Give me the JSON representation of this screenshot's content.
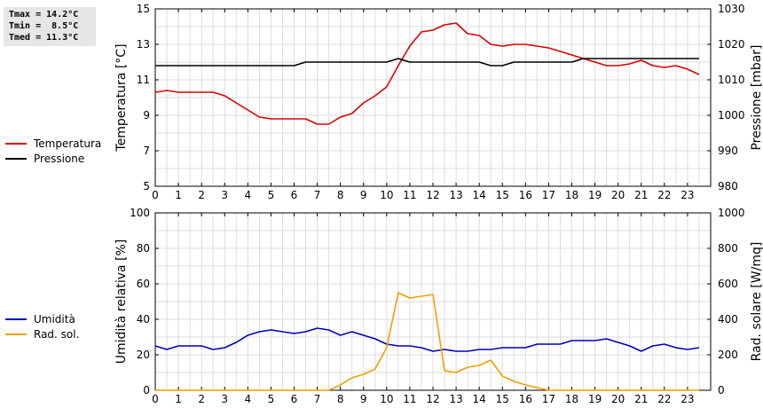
{
  "stats": {
    "tmax": "Tmax = 14.2°C",
    "tmin": "Tmin =  8.5°C",
    "tmed": "Tmed = 11.3°C"
  },
  "legend_top": [
    {
      "label": "Temperatura",
      "color": "#dd0000"
    },
    {
      "label": "Pressione",
      "color": "#000000"
    }
  ],
  "legend_bottom": [
    {
      "label": "Umidità",
      "color": "#0000bb"
    },
    {
      "label": "Rad. sol.",
      "color": "#f0a000"
    }
  ],
  "chart_data": [
    {
      "type": "line",
      "xlim": [
        0,
        24
      ],
      "xticks": [
        "0",
        "1",
        "2",
        "3",
        "4",
        "5",
        "6",
        "7",
        "8",
        "9",
        "10",
        "11",
        "12",
        "13",
        "14",
        "15",
        "16",
        "17",
        "18",
        "19",
        "20",
        "21",
        "22",
        "23"
      ],
      "ylabel_left": "Temperatura [°C]",
      "ylabel_right": "Pressione [mbar]",
      "ylim_left": [
        5,
        15
      ],
      "yticks_left": [
        "5",
        "7",
        "9",
        "11",
        "13",
        "15"
      ],
      "ylim_right": [
        980,
        1030
      ],
      "yticks_right": [
        "980",
        "990",
        "1000",
        "1010",
        "1020",
        "1030"
      ],
      "grid": true,
      "series": [
        {
          "name": "Temperatura",
          "axis": "left",
          "color": "#dd0000",
          "x": [
            0,
            0.5,
            1,
            1.5,
            2,
            2.5,
            3,
            3.5,
            4,
            4.5,
            5,
            5.5,
            6,
            6.5,
            7,
            7.5,
            8,
            8.5,
            9,
            9.5,
            10,
            10.5,
            11,
            11.5,
            12,
            12.5,
            13,
            13.5,
            14,
            14.5,
            15,
            15.5,
            16,
            16.5,
            17,
            17.5,
            18,
            18.5,
            19,
            19.5,
            20,
            20.5,
            21,
            21.5,
            22,
            22.5,
            23,
            23.5
          ],
          "values": [
            10.3,
            10.4,
            10.3,
            10.3,
            10.3,
            10.3,
            10.1,
            9.7,
            9.3,
            8.9,
            8.8,
            8.8,
            8.8,
            8.8,
            8.5,
            8.5,
            8.9,
            9.1,
            9.7,
            10.1,
            10.6,
            11.8,
            12.9,
            13.7,
            13.8,
            14.1,
            14.2,
            13.6,
            13.5,
            13.0,
            12.9,
            13.0,
            13.0,
            12.9,
            12.8,
            12.6,
            12.4,
            12.2,
            12.0,
            11.8,
            11.8,
            11.9,
            12.1,
            11.8,
            11.7,
            11.8,
            11.6,
            11.3
          ]
        },
        {
          "name": "Pressione",
          "axis": "right",
          "color": "#000000",
          "x": [
            0,
            0.5,
            1,
            1.5,
            2,
            2.5,
            3,
            3.5,
            4,
            4.5,
            5,
            5.5,
            6,
            6.5,
            7,
            7.5,
            8,
            8.5,
            9,
            9.5,
            10,
            10.5,
            11,
            11.5,
            12,
            12.5,
            13,
            13.5,
            14,
            14.5,
            15,
            15.5,
            16,
            16.5,
            17,
            17.5,
            18,
            18.5,
            19,
            19.5,
            20,
            20.5,
            21,
            21.5,
            22,
            22.5,
            23,
            23.5
          ],
          "values": [
            1014,
            1014,
            1014,
            1014,
            1014,
            1014,
            1014,
            1014,
            1014,
            1014,
            1014,
            1014,
            1014,
            1015,
            1015,
            1015,
            1015,
            1015,
            1015,
            1015,
            1015,
            1016,
            1015,
            1015,
            1015,
            1015,
            1015,
            1015,
            1015,
            1014,
            1014,
            1015,
            1015,
            1015,
            1015,
            1015,
            1015,
            1016,
            1016,
            1016,
            1016,
            1016,
            1016,
            1016,
            1016,
            1016,
            1016,
            1016
          ]
        }
      ]
    },
    {
      "type": "line",
      "xlim": [
        0,
        24
      ],
      "xticks": [
        "0",
        "1",
        "2",
        "3",
        "4",
        "5",
        "6",
        "7",
        "8",
        "9",
        "10",
        "11",
        "12",
        "13",
        "14",
        "15",
        "16",
        "17",
        "18",
        "19",
        "20",
        "21",
        "22",
        "23"
      ],
      "ylabel_left": "Umidità relativa [%]",
      "ylabel_right": "Rad. solare [W/mq]",
      "ylim_left": [
        0,
        100
      ],
      "yticks_left": [
        "0",
        "20",
        "40",
        "60",
        "80",
        "100"
      ],
      "ylim_right": [
        0,
        1000
      ],
      "yticks_right": [
        "0",
        "200",
        "400",
        "600",
        "800",
        "1000"
      ],
      "grid": true,
      "series": [
        {
          "name": "Umidità",
          "axis": "left",
          "color": "#0000bb",
          "x": [
            0,
            0.5,
            1,
            1.5,
            2,
            2.5,
            3,
            3.5,
            4,
            4.5,
            5,
            5.5,
            6,
            6.5,
            7,
            7.5,
            8,
            8.5,
            9,
            9.5,
            10,
            10.5,
            11,
            11.5,
            12,
            12.5,
            13,
            13.5,
            14,
            14.5,
            15,
            15.5,
            16,
            16.5,
            17,
            17.5,
            18,
            18.5,
            19,
            19.5,
            20,
            20.5,
            21,
            21.5,
            22,
            22.5,
            23,
            23.5
          ],
          "values": [
            25,
            23,
            25,
            25,
            25,
            23,
            24,
            27,
            31,
            33,
            34,
            33,
            32,
            33,
            35,
            34,
            31,
            33,
            31,
            29,
            26,
            25,
            25,
            24,
            22,
            23,
            22,
            22,
            23,
            23,
            24,
            24,
            24,
            26,
            26,
            26,
            28,
            28,
            28,
            29,
            27,
            25,
            22,
            25,
            26,
            24,
            23,
            24
          ]
        },
        {
          "name": "Rad. sol.",
          "axis": "right",
          "color": "#f0a000",
          "x": [
            0,
            0.5,
            1,
            1.5,
            2,
            2.5,
            3,
            3.5,
            4,
            4.5,
            5,
            5.5,
            6,
            6.5,
            7,
            7.5,
            8,
            8.5,
            9,
            9.5,
            10,
            10.5,
            11,
            11.5,
            12,
            12.5,
            13,
            13.5,
            14,
            14.5,
            15,
            15.5,
            16,
            16.5,
            17,
            17.5,
            18,
            18.5,
            19,
            19.5,
            20,
            20.5,
            21,
            21.5,
            22,
            22.5,
            23,
            23.5
          ],
          "values": [
            0,
            0,
            0,
            0,
            0,
            0,
            0,
            0,
            0,
            0,
            0,
            0,
            0,
            0,
            0,
            0,
            30,
            70,
            90,
            120,
            240,
            550,
            520,
            530,
            540,
            110,
            100,
            130,
            140,
            170,
            80,
            50,
            30,
            15,
            0,
            0,
            0,
            0,
            0,
            0,
            0,
            0,
            0,
            0,
            0,
            0,
            0,
            0
          ]
        }
      ]
    }
  ]
}
